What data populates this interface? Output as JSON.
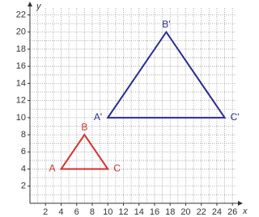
{
  "chart_data": {
    "type": "polygon",
    "x_label": "x",
    "y_label": "y",
    "xlim": [
      0,
      26.5
    ],
    "ylim": [
      0,
      22.8
    ],
    "xticks": [
      2,
      4,
      6,
      8,
      10,
      12,
      14,
      16,
      18,
      20,
      22,
      24,
      26
    ],
    "yticks": [
      2,
      4,
      6,
      8,
      10,
      12,
      14,
      16,
      18,
      20,
      22
    ],
    "grid": true,
    "minor_grid": 1,
    "series": [
      {
        "color": "#d83030",
        "x": [
          4,
          7,
          10
        ],
        "values": [
          4,
          8,
          4
        ],
        "point_labels": [
          "A",
          "B",
          "C"
        ]
      },
      {
        "color": "#2a2a9c",
        "x": [
          10,
          17.5,
          25
        ],
        "values": [
          10,
          20,
          10
        ],
        "point_labels": [
          "A'",
          "B'",
          "C'"
        ]
      }
    ]
  }
}
